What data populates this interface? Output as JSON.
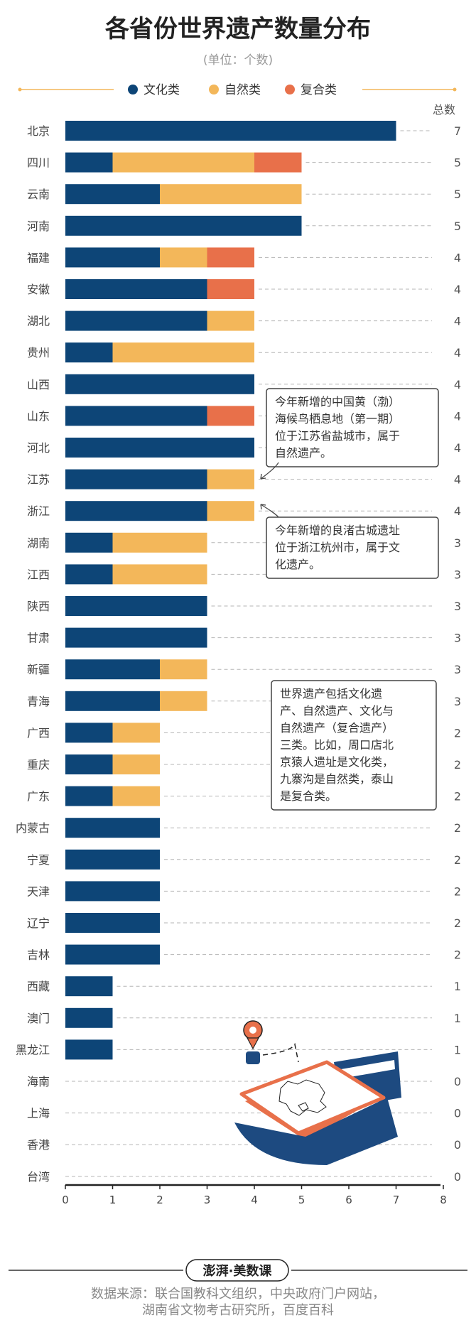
{
  "chart_data": {
    "type": "bar",
    "orientation": "horizontal",
    "stacked": true,
    "title": "各省份世界遗产数量分布",
    "subtitle": "(单位：个数)",
    "total_header": "总数",
    "categories": [
      "北京",
      "四川",
      "云南",
      "河南",
      "福建",
      "安徽",
      "湖北",
      "贵州",
      "山西",
      "山东",
      "河北",
      "江苏",
      "浙江",
      "湖南",
      "江西",
      "陕西",
      "甘肃",
      "新疆",
      "青海",
      "广西",
      "重庆",
      "广东",
      "内蒙古",
      "宁夏",
      "天津",
      "辽宁",
      "吉林",
      "西藏",
      "澳门",
      "黑龙江",
      "海南",
      "上海",
      "香港",
      "台湾"
    ],
    "series": [
      {
        "name": "文化类",
        "color": "#0d4577",
        "values": [
          7,
          1,
          2,
          5,
          2,
          3,
          3,
          1,
          4,
          3,
          4,
          3,
          3,
          1,
          1,
          3,
          3,
          2,
          2,
          1,
          1,
          1,
          2,
          2,
          2,
          2,
          2,
          1,
          1,
          1,
          0,
          0,
          0,
          0
        ]
      },
      {
        "name": "自然类",
        "color": "#f3b75a",
        "values": [
          0,
          3,
          3,
          0,
          1,
          0,
          1,
          3,
          0,
          0,
          0,
          1,
          1,
          2,
          2,
          0,
          0,
          1,
          1,
          1,
          1,
          1,
          0,
          0,
          0,
          0,
          0,
          0,
          0,
          0,
          0,
          0,
          0,
          0
        ]
      },
      {
        "name": "复合类",
        "color": "#e8704a",
        "values": [
          0,
          1,
          0,
          0,
          1,
          1,
          0,
          0,
          0,
          1,
          0,
          0,
          0,
          0,
          0,
          0,
          0,
          0,
          0,
          0,
          0,
          0,
          0,
          0,
          0,
          0,
          0,
          0,
          0,
          0,
          0,
          0,
          0,
          0
        ]
      }
    ],
    "totals": [
      7,
      5,
      5,
      5,
      4,
      4,
      4,
      4,
      4,
      4,
      4,
      4,
      4,
      3,
      3,
      3,
      3,
      3,
      3,
      2,
      2,
      2,
      2,
      2,
      2,
      2,
      2,
      1,
      1,
      1,
      0,
      0,
      0,
      0
    ],
    "xlim": [
      0,
      8
    ],
    "xticks": [
      0,
      1,
      2,
      3,
      4,
      5,
      6,
      7,
      8
    ],
    "grid": "dashed",
    "legend_position": "top",
    "annotations": [
      {
        "text_lines": [
          "今年新增的中国黄（渤）",
          "海候鸟栖息地（第一期）",
          "位于江苏省盐城市，属于",
          "自然遗产。"
        ]
      },
      {
        "text_lines": [
          "今年新增的良渚古城遗址",
          "位于浙江杭州市，属于文",
          "化遗产。"
        ]
      },
      {
        "text_lines": [
          "世界遗产包括文化遗",
          "产、自然遗产、文化与",
          "自然遗产（复合遗产）",
          "三类。比如，周口店北",
          "京猿人遗址是文化类，",
          "九寨沟是自然类，泰山",
          "是复合类。"
        ]
      }
    ]
  },
  "footer": {
    "logo": "澎湃·美数课",
    "source_lines": [
      "数据来源：联合国教科文组织，中央政府门户网站，",
      "湖南省文物考古研究所，百度百科"
    ]
  }
}
